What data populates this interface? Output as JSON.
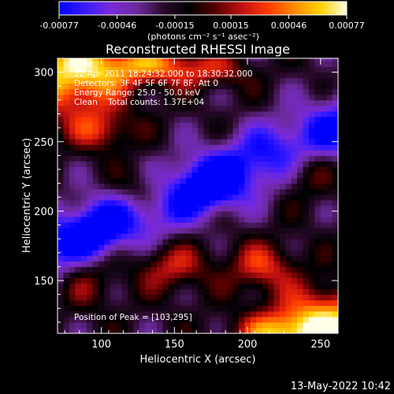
{
  "colorbar": {
    "ticks": [
      "-0.00077",
      "-0.00046",
      "-0.00015",
      "0.00015",
      "0.00046",
      "0.00077"
    ],
    "tick_values": [
      -0.00077,
      -0.00046,
      -0.00015,
      0.00015,
      0.00046,
      0.00077
    ],
    "unit_label": "(photons cm⁻² s⁻¹ asec⁻²)",
    "stops": [
      "#0000ff",
      "#3a1cff",
      "#7a2ad8",
      "#6a2a9a",
      "#2a0a2a",
      "#000000",
      "#5a0000",
      "#c21010",
      "#ff3a00",
      "#ff8a00",
      "#ffd200",
      "#ffffe8"
    ]
  },
  "info": {
    "line1": "22-Apr-2011 18:24:32.000 to 18:30:32.000",
    "line2": "Detectors: 3F 4F 5F 6F 7F 8F, Att 0",
    "line3": "Energy Range: 25.0 - 50.0 keV",
    "line4": "Clean    Total counts: 1.37E+04",
    "peak": "Position of Peak = [103,295]"
  },
  "footer": {
    "timestamp": "13-May-2022 10:42"
  },
  "chart_data": {
    "type": "heatmap",
    "title": "Reconstructed RHESSI Image",
    "xlabel": "Heliocentric X (arcsec)",
    "ylabel": "Heliocentric Y (arcsec)",
    "xlim": [
      70,
      262
    ],
    "ylim": [
      112,
      310
    ],
    "xticks": [
      100,
      150,
      200,
      250
    ],
    "yticks": [
      150,
      200,
      250,
      300
    ],
    "colorbar_range": [
      -0.00077,
      0.00077
    ],
    "peak_position": [
      103,
      295
    ],
    "features": [
      {
        "kind": "negative_band",
        "from": [
          80,
          180
        ],
        "to": [
          262,
          260
        ],
        "description_value": -0.00077
      },
      {
        "kind": "positive_region",
        "center": [
          90,
          300
        ],
        "value": 0.00077
      },
      {
        "kind": "positive_region",
        "center": [
          255,
          120
        ],
        "value": 0.00077
      }
    ]
  }
}
